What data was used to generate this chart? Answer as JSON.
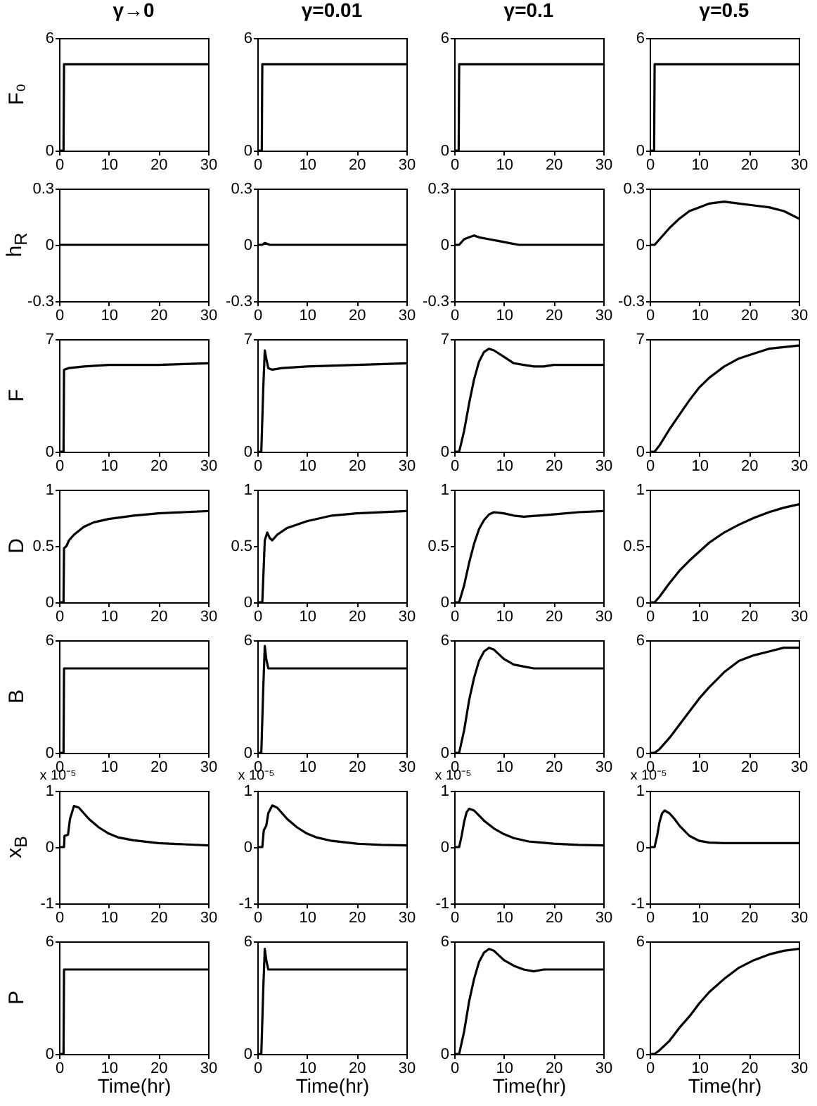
{
  "chart_data": [
    {
      "type": "line",
      "title": "γ→0",
      "ylabel": "F₀",
      "x": [
        0,
        0.9,
        1,
        30
      ],
      "series": [
        {
          "color": "#000000",
          "values": [
            0,
            0,
            4.6,
            4.6
          ]
        }
      ],
      "xlim": [
        0,
        30
      ],
      "xticks": [
        0,
        10,
        20,
        30
      ],
      "ylim": [
        0,
        6
      ],
      "yticks": [
        0,
        6
      ]
    },
    {
      "type": "line",
      "title": "γ=0.01",
      "x": [
        0,
        0.9,
        1,
        30
      ],
      "series": [
        {
          "color": "#000000",
          "values": [
            0,
            0,
            4.6,
            4.6
          ]
        }
      ],
      "xlim": [
        0,
        30
      ],
      "xticks": [
        0,
        10,
        20,
        30
      ],
      "ylim": [
        0,
        6
      ],
      "yticks": [
        0,
        6
      ]
    },
    {
      "type": "line",
      "title": "γ=0.1",
      "x": [
        0,
        0.9,
        1,
        30
      ],
      "series": [
        {
          "color": "#000000",
          "values": [
            0,
            0,
            4.6,
            4.6
          ]
        }
      ],
      "xlim": [
        0,
        30
      ],
      "xticks": [
        0,
        10,
        20,
        30
      ],
      "ylim": [
        0,
        6
      ],
      "yticks": [
        0,
        6
      ]
    },
    {
      "type": "line",
      "title": "γ=0.5",
      "x": [
        0,
        0.9,
        1,
        30
      ],
      "series": [
        {
          "color": "#000000",
          "values": [
            0,
            0,
            4.6,
            4.6
          ]
        }
      ],
      "xlim": [
        0,
        30
      ],
      "xticks": [
        0,
        10,
        20,
        30
      ],
      "ylim": [
        0,
        6
      ],
      "yticks": [
        0,
        6
      ]
    },
    {
      "type": "line",
      "ylabel": "h$_{R}$",
      "x": [
        0,
        30
      ],
      "series": [
        {
          "color": "#000000",
          "values": [
            0,
            0
          ]
        }
      ],
      "xlim": [
        0,
        30
      ],
      "xticks": [
        0,
        10,
        20,
        30
      ],
      "ylim": [
        -0.3,
        0.3
      ],
      "yticks": [
        -0.3,
        0,
        0.3
      ]
    },
    {
      "type": "line",
      "x": [
        0,
        1,
        1.5,
        2.5,
        30
      ],
      "series": [
        {
          "color": "#000000",
          "values": [
            0,
            0,
            0.01,
            0,
            0
          ]
        }
      ],
      "xlim": [
        0,
        30
      ],
      "xticks": [
        0,
        10,
        20,
        30
      ],
      "ylim": [
        -0.3,
        0.3
      ],
      "yticks": [
        -0.3,
        0,
        0.3
      ]
    },
    {
      "type": "line",
      "x": [
        0,
        1,
        2,
        3,
        4,
        5,
        7,
        9,
        11,
        13,
        20,
        30
      ],
      "series": [
        {
          "color": "#000000",
          "values": [
            0,
            0,
            0.03,
            0.04,
            0.05,
            0.04,
            0.03,
            0.02,
            0.01,
            0,
            0,
            0
          ]
        }
      ],
      "xlim": [
        0,
        30
      ],
      "xticks": [
        0,
        10,
        20,
        30
      ],
      "ylim": [
        -0.3,
        0.3
      ],
      "yticks": [
        -0.3,
        0,
        0.3
      ]
    },
    {
      "type": "line",
      "x": [
        0,
        1,
        2,
        4,
        6,
        8,
        10,
        12,
        15,
        18,
        21,
        24,
        27,
        30
      ],
      "series": [
        {
          "color": "#000000",
          "values": [
            0,
            0,
            0.03,
            0.09,
            0.14,
            0.18,
            0.2,
            0.22,
            0.23,
            0.22,
            0.21,
            0.2,
            0.18,
            0.14
          ]
        }
      ],
      "xlim": [
        0,
        30
      ],
      "xticks": [
        0,
        10,
        20,
        30
      ],
      "ylim": [
        -0.3,
        0.3
      ],
      "yticks": [
        -0.3,
        0,
        0.3
      ]
    },
    {
      "type": "line",
      "ylabel": "F",
      "x": [
        0,
        0.9,
        1,
        2,
        5,
        10,
        20,
        30
      ],
      "series": [
        {
          "color": "#000000",
          "values": [
            0,
            0,
            5.1,
            5.2,
            5.3,
            5.4,
            5.4,
            5.5
          ]
        }
      ],
      "xlim": [
        0,
        30
      ],
      "xticks": [
        0,
        10,
        20,
        30
      ],
      "ylim": [
        0,
        7
      ],
      "yticks": [
        0,
        7
      ]
    },
    {
      "type": "line",
      "x": [
        0,
        0.8,
        1.2,
        1.5,
        1.8,
        2.2,
        3,
        5,
        10,
        20,
        30
      ],
      "series": [
        {
          "color": "#000000",
          "values": [
            0,
            0,
            4,
            6.3,
            5.8,
            5.2,
            5.1,
            5.2,
            5.3,
            5.4,
            5.5
          ]
        }
      ],
      "xlim": [
        0,
        30
      ],
      "xticks": [
        0,
        10,
        20,
        30
      ],
      "ylim": [
        0,
        7
      ],
      "yticks": [
        0,
        7
      ]
    },
    {
      "type": "line",
      "x": [
        0,
        1,
        2,
        3,
        4,
        5,
        6,
        7,
        8,
        10,
        12,
        14,
        16,
        18,
        20,
        25,
        30
      ],
      "series": [
        {
          "color": "#000000",
          "values": [
            0,
            0,
            1.3,
            3.0,
            4.5,
            5.6,
            6.2,
            6.4,
            6.3,
            5.9,
            5.5,
            5.4,
            5.3,
            5.3,
            5.4,
            5.4,
            5.4
          ]
        }
      ],
      "xlim": [
        0,
        30
      ],
      "xticks": [
        0,
        10,
        20,
        30
      ],
      "ylim": [
        0,
        7
      ],
      "yticks": [
        0,
        7
      ]
    },
    {
      "type": "line",
      "x": [
        0,
        1,
        2,
        4,
        6,
        8,
        10,
        12,
        15,
        18,
        21,
        24,
        27,
        30
      ],
      "series": [
        {
          "color": "#000000",
          "values": [
            0,
            0,
            0.4,
            1.4,
            2.3,
            3.2,
            4.0,
            4.6,
            5.3,
            5.8,
            6.1,
            6.4,
            6.5,
            6.6
          ]
        }
      ],
      "xlim": [
        0,
        30
      ],
      "xticks": [
        0,
        10,
        20,
        30
      ],
      "ylim": [
        0,
        7
      ],
      "yticks": [
        0,
        7
      ]
    },
    {
      "type": "line",
      "ylabel": "D",
      "x": [
        0,
        0.9,
        1,
        1.5,
        2,
        3,
        5,
        7,
        10,
        15,
        20,
        25,
        30
      ],
      "series": [
        {
          "color": "#000000",
          "values": [
            0,
            0,
            0.48,
            0.5,
            0.55,
            0.6,
            0.67,
            0.71,
            0.74,
            0.77,
            0.79,
            0.8,
            0.81
          ]
        }
      ],
      "xlim": [
        0,
        30
      ],
      "xticks": [
        0,
        10,
        20,
        30
      ],
      "ylim": [
        0,
        1
      ],
      "yticks": [
        0,
        0.5,
        1
      ]
    },
    {
      "type": "line",
      "x": [
        0,
        1,
        1.5,
        2,
        2.5,
        3,
        4,
        6,
        10,
        15,
        20,
        30
      ],
      "series": [
        {
          "color": "#000000",
          "values": [
            0,
            0,
            0.55,
            0.62,
            0.57,
            0.55,
            0.6,
            0.66,
            0.72,
            0.77,
            0.79,
            0.81
          ]
        }
      ],
      "xlim": [
        0,
        30
      ],
      "xticks": [
        0,
        10,
        20,
        30
      ],
      "ylim": [
        0,
        1
      ],
      "yticks": [
        0,
        0.5,
        1
      ]
    },
    {
      "type": "line",
      "x": [
        0,
        1,
        2,
        3,
        4,
        5,
        6,
        7,
        8,
        10,
        12,
        14,
        17,
        20,
        25,
        30
      ],
      "series": [
        {
          "color": "#000000",
          "values": [
            0,
            0,
            0.15,
            0.35,
            0.52,
            0.65,
            0.73,
            0.78,
            0.8,
            0.79,
            0.77,
            0.76,
            0.77,
            0.78,
            0.8,
            0.81
          ]
        }
      ],
      "xlim": [
        0,
        30
      ],
      "xticks": [
        0,
        10,
        20,
        30
      ],
      "ylim": [
        0,
        1
      ],
      "yticks": [
        0,
        0.5,
        1
      ]
    },
    {
      "type": "line",
      "x": [
        0,
        1,
        2,
        4,
        6,
        8,
        10,
        12,
        15,
        18,
        21,
        24,
        27,
        30
      ],
      "series": [
        {
          "color": "#000000",
          "values": [
            0,
            0,
            0.05,
            0.17,
            0.28,
            0.37,
            0.45,
            0.53,
            0.62,
            0.69,
            0.75,
            0.8,
            0.84,
            0.87
          ]
        }
      ],
      "xlim": [
        0,
        30
      ],
      "xticks": [
        0,
        10,
        20,
        30
      ],
      "ylim": [
        0,
        1
      ],
      "yticks": [
        0,
        0.5,
        1
      ]
    },
    {
      "type": "line",
      "ylabel": "B",
      "x": [
        0,
        0.9,
        1,
        30
      ],
      "series": [
        {
          "color": "#000000",
          "values": [
            0,
            0,
            4.5,
            4.5
          ]
        }
      ],
      "xlim": [
        0,
        30
      ],
      "xticks": [
        0,
        10,
        20,
        30
      ],
      "ylim": [
        0,
        6
      ],
      "yticks": [
        0,
        6
      ]
    },
    {
      "type": "line",
      "x": [
        0,
        0.8,
        1.2,
        1.5,
        1.8,
        2.2,
        3,
        30
      ],
      "series": [
        {
          "color": "#000000",
          "values": [
            0,
            0,
            3.5,
            5.7,
            5.0,
            4.5,
            4.5,
            4.5
          ]
        }
      ],
      "xlim": [
        0,
        30
      ],
      "xticks": [
        0,
        10,
        20,
        30
      ],
      "ylim": [
        0,
        6
      ],
      "yticks": [
        0,
        6
      ]
    },
    {
      "type": "line",
      "x": [
        0,
        1,
        2,
        3,
        4,
        5,
        6,
        7,
        8,
        10,
        12,
        14,
        16,
        18,
        20,
        25,
        30
      ],
      "series": [
        {
          "color": "#000000",
          "values": [
            0,
            0,
            1.2,
            2.8,
            4.0,
            4.9,
            5.4,
            5.6,
            5.5,
            5.0,
            4.7,
            4.6,
            4.5,
            4.5,
            4.5,
            4.5,
            4.5
          ]
        }
      ],
      "xlim": [
        0,
        30
      ],
      "xticks": [
        0,
        10,
        20,
        30
      ],
      "ylim": [
        0,
        6
      ],
      "yticks": [
        0,
        6
      ]
    },
    {
      "type": "line",
      "x": [
        0,
        1,
        2,
        4,
        6,
        8,
        10,
        12,
        15,
        18,
        21,
        24,
        27,
        30
      ],
      "series": [
        {
          "color": "#000000",
          "values": [
            0,
            0,
            0.2,
            0.8,
            1.5,
            2.2,
            2.9,
            3.5,
            4.3,
            4.9,
            5.2,
            5.4,
            5.6,
            5.6
          ]
        }
      ],
      "xlim": [
        0,
        30
      ],
      "xticks": [
        0,
        10,
        20,
        30
      ],
      "ylim": [
        0,
        6
      ],
      "yticks": [
        0,
        6
      ]
    },
    {
      "type": "line",
      "ylabel": "x$_{B}$",
      "annotations": [
        "x 10⁻⁵"
      ],
      "x": [
        0,
        1,
        1.1,
        1.8,
        2.2,
        3,
        4,
        5,
        6,
        8,
        10,
        12,
        15,
        20,
        25,
        30
      ],
      "series": [
        {
          "color": "#000000",
          "values": [
            0,
            0,
            0.2,
            0.22,
            0.5,
            0.73,
            0.7,
            0.6,
            0.5,
            0.35,
            0.24,
            0.17,
            0.12,
            0.07,
            0.05,
            0.03
          ]
        }
      ],
      "xlim": [
        0,
        30
      ],
      "xticks": [
        0,
        10,
        20,
        30
      ],
      "ylim": [
        -1,
        1
      ],
      "yticks": [
        -1,
        0,
        1
      ]
    },
    {
      "type": "line",
      "annotations": [
        "x 10⁻⁵"
      ],
      "x": [
        0,
        1,
        1.3,
        1.8,
        2.2,
        3,
        4,
        5,
        6,
        8,
        10,
        12,
        15,
        20,
        25,
        30
      ],
      "series": [
        {
          "color": "#000000",
          "values": [
            0,
            0,
            0.3,
            0.38,
            0.6,
            0.74,
            0.7,
            0.6,
            0.5,
            0.35,
            0.24,
            0.17,
            0.11,
            0.06,
            0.04,
            0.03
          ]
        }
      ],
      "xlim": [
        0,
        30
      ],
      "xticks": [
        0,
        10,
        20,
        30
      ],
      "ylim": [
        -1,
        1
      ],
      "yticks": [
        -1,
        0,
        1
      ]
    },
    {
      "type": "line",
      "annotations": [
        "x 10⁻⁵"
      ],
      "x": [
        0,
        1,
        1.5,
        2,
        2.5,
        3,
        4,
        5,
        6,
        8,
        10,
        12,
        15,
        20,
        25,
        30
      ],
      "series": [
        {
          "color": "#000000",
          "values": [
            0,
            0,
            0.2,
            0.45,
            0.62,
            0.68,
            0.65,
            0.56,
            0.47,
            0.33,
            0.23,
            0.16,
            0.1,
            0.06,
            0.04,
            0.03
          ]
        }
      ],
      "xlim": [
        0,
        30
      ],
      "xticks": [
        0,
        10,
        20,
        30
      ],
      "ylim": [
        -1,
        1
      ],
      "yticks": [
        -1,
        0,
        1
      ]
    },
    {
      "type": "line",
      "annotations": [
        "x 10⁻⁵"
      ],
      "x": [
        0,
        1,
        1.5,
        2,
        2.5,
        3,
        4,
        5,
        6,
        8,
        10,
        12,
        15,
        20,
        30
      ],
      "series": [
        {
          "color": "#000000",
          "values": [
            0,
            0,
            0.2,
            0.45,
            0.6,
            0.65,
            0.6,
            0.5,
            0.38,
            0.2,
            0.11,
            0.08,
            0.07,
            0.07,
            0.07
          ]
        }
      ],
      "xlim": [
        0,
        30
      ],
      "xticks": [
        0,
        10,
        20,
        30
      ],
      "ylim": [
        -1,
        1
      ],
      "yticks": [
        -1,
        0,
        1
      ]
    },
    {
      "type": "line",
      "ylabel": "P",
      "xlabel": "Time(hr)",
      "x": [
        0,
        0.9,
        1,
        30
      ],
      "series": [
        {
          "color": "#000000",
          "values": [
            0,
            0,
            4.5,
            4.5
          ]
        }
      ],
      "xlim": [
        0,
        30
      ],
      "xticks": [
        0,
        10,
        20,
        30
      ],
      "ylim": [
        0,
        6
      ],
      "yticks": [
        0,
        6
      ]
    },
    {
      "type": "line",
      "xlabel": "Time(hr)",
      "x": [
        0,
        0.8,
        1.2,
        1.5,
        1.8,
        2.2,
        3,
        30
      ],
      "series": [
        {
          "color": "#000000",
          "values": [
            0,
            0,
            3.5,
            5.6,
            5.0,
            4.5,
            4.5,
            4.5
          ]
        }
      ],
      "xlim": [
        0,
        30
      ],
      "xticks": [
        0,
        10,
        20,
        30
      ],
      "ylim": [
        0,
        6
      ],
      "yticks": [
        0,
        6
      ]
    },
    {
      "type": "line",
      "xlabel": "Time(hr)",
      "x": [
        0,
        1,
        2,
        3,
        4,
        5,
        6,
        7,
        8,
        10,
        12,
        14,
        16,
        18,
        20,
        25,
        30
      ],
      "series": [
        {
          "color": "#000000",
          "values": [
            0,
            0,
            1.2,
            2.8,
            4.0,
            4.9,
            5.4,
            5.6,
            5.5,
            5.0,
            4.7,
            4.5,
            4.4,
            4.5,
            4.5,
            4.5,
            4.5
          ]
        }
      ],
      "xlim": [
        0,
        30
      ],
      "xticks": [
        0,
        10,
        20,
        30
      ],
      "ylim": [
        0,
        6
      ],
      "yticks": [
        0,
        6
      ]
    },
    {
      "type": "line",
      "xlabel": "Time(hr)",
      "x": [
        0,
        1,
        2,
        4,
        6,
        8,
        10,
        12,
        15,
        18,
        21,
        24,
        27,
        30
      ],
      "series": [
        {
          "color": "#000000",
          "values": [
            0,
            0,
            0.2,
            0.7,
            1.4,
            2.0,
            2.7,
            3.3,
            4.0,
            4.6,
            5.0,
            5.3,
            5.5,
            5.6
          ]
        }
      ],
      "xlim": [
        0,
        30
      ],
      "xticks": [
        0,
        10,
        20,
        30
      ],
      "ylim": [
        0,
        6
      ],
      "yticks": [
        0,
        6
      ]
    }
  ]
}
